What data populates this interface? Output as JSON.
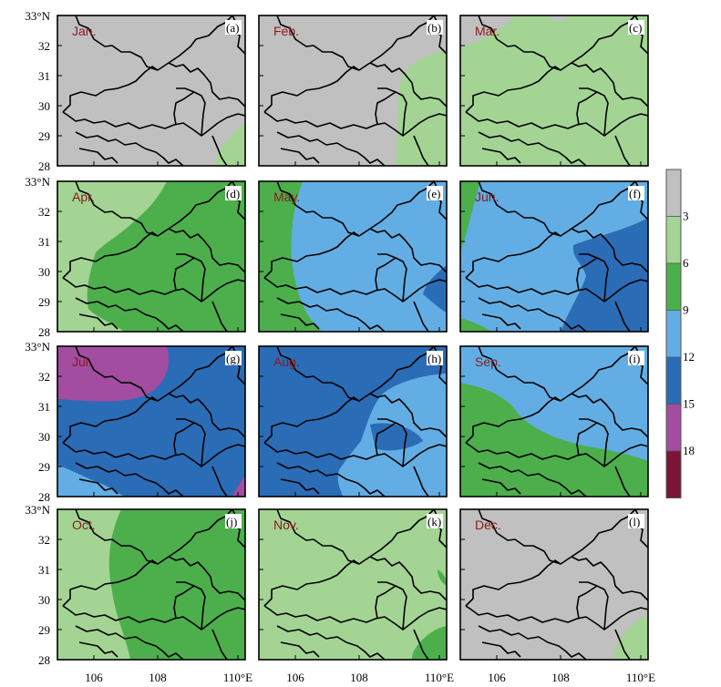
{
  "panels": [
    {
      "letter": "(a)",
      "month": "Jan."
    },
    {
      "letter": "(b)",
      "month": "Feb."
    },
    {
      "letter": "(c)",
      "month": "Mar."
    },
    {
      "letter": "(d)",
      "month": "Apr."
    },
    {
      "letter": "(e)",
      "month": "May."
    },
    {
      "letter": "(f)",
      "month": "Jun."
    },
    {
      "letter": "(g)",
      "month": "Jul."
    },
    {
      "letter": "(h)",
      "month": "Aug."
    },
    {
      "letter": "(i)",
      "month": "Sep."
    },
    {
      "letter": "(j)",
      "month": "Oct."
    },
    {
      "letter": "(k)",
      "month": "Nov."
    },
    {
      "letter": "(l)",
      "month": "Dec."
    }
  ],
  "axes": {
    "lat_ticks": [
      "33°N",
      "32",
      "31",
      "30",
      "29",
      "28"
    ],
    "lon_ticks": [
      "106",
      "108",
      "110°E"
    ]
  },
  "colorbar": {
    "labels": [
      "3",
      "6",
      "9",
      "12",
      "15",
      "18"
    ],
    "colors": [
      "#c0c0c0",
      "#a3d494",
      "#4caf4c",
      "#62aee4",
      "#2b6cb6",
      "#a24da0",
      "#7a1537"
    ]
  },
  "palette": {
    "gray": "#c0c0c0",
    "lightgreen": "#a3d494",
    "green": "#4caf4c",
    "lightblue": "#62aee4",
    "blue": "#2b6cb6",
    "purple": "#a24da0",
    "maroon": "#7a1537",
    "boundary": "#000000"
  }
}
